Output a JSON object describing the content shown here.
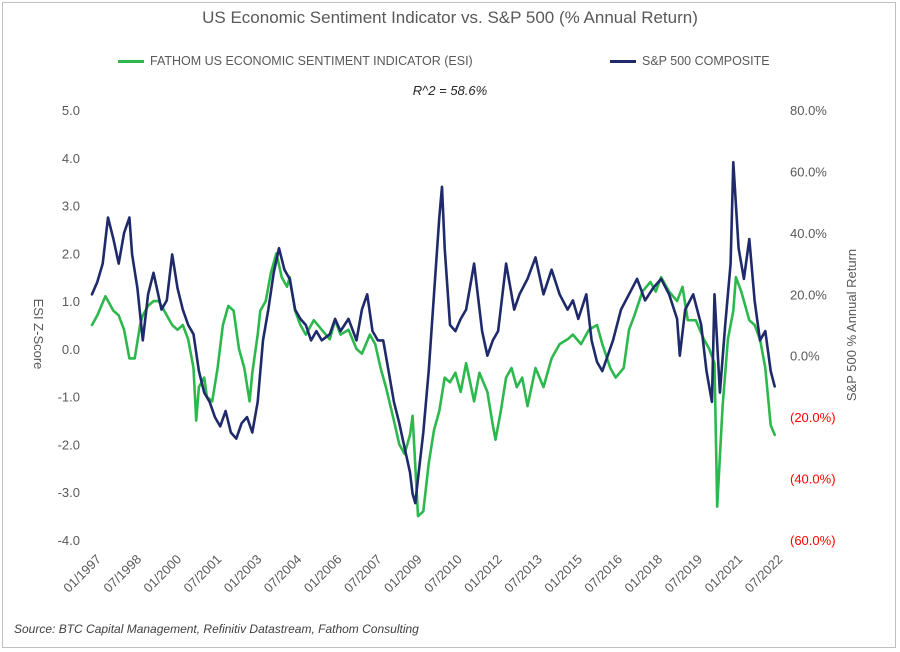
{
  "chart_data": {
    "type": "line",
    "title": "US Economic Sentiment Indicator  vs. S&P 500 (% Annual Return)",
    "annotation": "R^2 = 58.6%",
    "source": "Source: BTC Capital Management, Refinitiv Datastream, Fathom Consulting",
    "ylabel_left": "ESI Z-Score",
    "ylabel_right": "S&P 500 % Annual Return",
    "ylim_left": [
      -4.0,
      5.0
    ],
    "ylim_right": [
      -60,
      80
    ],
    "left_ticks": [
      "5.0",
      "4.0",
      "3.0",
      "2.0",
      "1.0",
      "0.0",
      "-1.0",
      "-2.0",
      "-3.0",
      "-4.0"
    ],
    "right_ticks": [
      "80.0%",
      "60.0%",
      "40.0%",
      "20.0%",
      "0.0%",
      "(20.0%)",
      "(40.0%)",
      "(60.0%)"
    ],
    "neg_color": "#ff0000",
    "x_range": [
      1997.0,
      2022.6
    ],
    "x_ticks": [
      {
        "label": "01/1997",
        "x": 1997.0
      },
      {
        "label": "07/1998",
        "x": 1998.5
      },
      {
        "label": "01/2000",
        "x": 2000.0
      },
      {
        "label": "07/2001",
        "x": 2001.5
      },
      {
        "label": "01/2003",
        "x": 2003.0
      },
      {
        "label": "07/2004",
        "x": 2004.5
      },
      {
        "label": "01/2006",
        "x": 2006.0
      },
      {
        "label": "07/2007",
        "x": 2007.5
      },
      {
        "label": "01/2009",
        "x": 2009.0
      },
      {
        "label": "07/2010",
        "x": 2010.5
      },
      {
        "label": "01/2012",
        "x": 2012.0
      },
      {
        "label": "07/2013",
        "x": 2013.5
      },
      {
        "label": "01/2015",
        "x": 2015.0
      },
      {
        "label": "07/2016",
        "x": 2016.5
      },
      {
        "label": "01/2018",
        "x": 2018.0
      },
      {
        "label": "07/2019",
        "x": 2019.5
      },
      {
        "label": "01/2021",
        "x": 2021.0
      },
      {
        "label": "07/2022",
        "x": 2022.5
      }
    ],
    "series": [
      {
        "name": "FATHOM US ECONOMIC SENTIMENT INDICATOR (ESI)",
        "axis": "left",
        "color": "#2db84d",
        "x": [
          1997.0,
          1997.2,
          1997.5,
          1997.8,
          1998.0,
          1998.2,
          1998.4,
          1998.6,
          1998.8,
          1998.9,
          1999.1,
          1999.3,
          1999.5,
          1999.8,
          2000.0,
          2000.2,
          2000.4,
          2000.6,
          2000.8,
          2000.9,
          2001.0,
          2001.2,
          2001.3,
          2001.5,
          2001.7,
          2001.9,
          2002.1,
          2002.3,
          2002.5,
          2002.7,
          2002.9,
          2003.0,
          2003.2,
          2003.3,
          2003.5,
          2003.7,
          2003.9,
          2004.1,
          2004.3,
          2004.4,
          2004.6,
          2004.8,
          2005.0,
          2005.3,
          2005.6,
          2005.9,
          2006.1,
          2006.3,
          2006.6,
          2006.9,
          2007.1,
          2007.4,
          2007.6,
          2007.8,
          2008.0,
          2008.3,
          2008.5,
          2008.7,
          2008.9,
          2009.0,
          2009.2,
          2009.4,
          2009.6,
          2009.8,
          2010.0,
          2010.2,
          2010.4,
          2010.6,
          2010.8,
          2011.0,
          2011.3,
          2011.5,
          2011.8,
          2012.0,
          2012.1,
          2012.3,
          2012.5,
          2012.7,
          2012.9,
          2013.1,
          2013.3,
          2013.6,
          2013.9,
          2014.2,
          2014.5,
          2014.8,
          2015.0,
          2015.3,
          2015.6,
          2015.9,
          2016.1,
          2016.4,
          2016.6,
          2016.9,
          2017.1,
          2017.3,
          2017.6,
          2017.9,
          2018.1,
          2018.3,
          2018.6,
          2018.9,
          2019.1,
          2019.3,
          2019.6,
          2019.9,
          2020.1,
          2020.3,
          2020.4,
          2020.6,
          2020.8,
          2021.0,
          2021.1,
          2021.3,
          2021.6,
          2021.8,
          2022.0,
          2022.2,
          2022.4,
          2022.55
        ],
        "values": [
          0.5,
          0.7,
          1.1,
          0.8,
          0.7,
          0.4,
          -0.2,
          -0.2,
          0.5,
          0.7,
          0.9,
          1.0,
          1.0,
          0.7,
          0.5,
          0.4,
          0.5,
          0.2,
          -0.4,
          -1.5,
          -0.8,
          -0.6,
          -1.0,
          -1.1,
          -0.4,
          0.5,
          0.9,
          0.8,
          0.0,
          -0.4,
          -1.1,
          -0.5,
          0.3,
          0.8,
          1.0,
          1.6,
          2.0,
          1.5,
          1.3,
          1.5,
          0.8,
          0.5,
          0.3,
          0.6,
          0.4,
          0.2,
          0.6,
          0.3,
          0.4,
          0.0,
          -0.1,
          0.3,
          0.1,
          -0.4,
          -0.8,
          -1.5,
          -2.0,
          -2.2,
          -1.8,
          -1.4,
          -3.5,
          -3.4,
          -2.4,
          -1.7,
          -1.3,
          -0.6,
          -0.7,
          -0.5,
          -0.9,
          -0.3,
          -1.1,
          -0.5,
          -0.9,
          -1.6,
          -1.9,
          -1.3,
          -0.6,
          -0.4,
          -0.8,
          -0.6,
          -1.2,
          -0.4,
          -0.8,
          -0.2,
          0.1,
          0.2,
          0.3,
          0.1,
          0.4,
          0.5,
          0.1,
          -0.4,
          -0.6,
          -0.4,
          0.4,
          0.7,
          1.2,
          1.4,
          1.2,
          1.5,
          1.2,
          1.0,
          1.3,
          0.6,
          0.6,
          0.2,
          0.0,
          -0.3,
          -3.3,
          -1.2,
          0.2,
          0.8,
          1.5,
          1.2,
          0.6,
          0.5,
          0.2,
          -0.4,
          -1.6,
          -1.8
        ]
      },
      {
        "name": "S&P 500 COMPOSITE",
        "axis": "right",
        "color": "#1f2a6b",
        "x": [
          1997.0,
          1997.2,
          1997.4,
          1997.6,
          1997.8,
          1998.0,
          1998.2,
          1998.4,
          1998.5,
          1998.7,
          1998.9,
          1999.1,
          1999.3,
          1999.6,
          1999.8,
          2000.0,
          2000.2,
          2000.4,
          2000.6,
          2000.8,
          2001.0,
          2001.2,
          2001.4,
          2001.6,
          2001.8,
          2002.0,
          2002.2,
          2002.4,
          2002.6,
          2002.8,
          2003.0,
          2003.2,
          2003.4,
          2003.6,
          2003.8,
          2004.0,
          2004.2,
          2004.4,
          2004.6,
          2004.8,
          2005.0,
          2005.2,
          2005.4,
          2005.6,
          2005.9,
          2006.1,
          2006.3,
          2006.6,
          2006.9,
          2007.1,
          2007.3,
          2007.5,
          2007.7,
          2007.9,
          2008.1,
          2008.3,
          2008.5,
          2008.7,
          2008.9,
          2009.0,
          2009.1,
          2009.2,
          2009.4,
          2009.6,
          2009.8,
          2010.0,
          2010.1,
          2010.2,
          2010.4,
          2010.6,
          2010.8,
          2011.0,
          2011.3,
          2011.6,
          2011.8,
          2012.0,
          2012.2,
          2012.5,
          2012.8,
          2013.0,
          2013.3,
          2013.6,
          2013.9,
          2014.2,
          2014.5,
          2014.8,
          2015.0,
          2015.2,
          2015.5,
          2015.7,
          2015.9,
          2016.1,
          2016.3,
          2016.5,
          2016.8,
          2017.1,
          2017.4,
          2017.7,
          2018.0,
          2018.3,
          2018.6,
          2018.9,
          2019.0,
          2019.2,
          2019.5,
          2019.8,
          2020.0,
          2020.2,
          2020.3,
          2020.5,
          2020.7,
          2020.9,
          2021.0,
          2021.2,
          2021.4,
          2021.6,
          2021.8,
          2022.0,
          2022.2,
          2022.4,
          2022.55
        ],
        "values": [
          20,
          24,
          30,
          45,
          38,
          30,
          40,
          45,
          33,
          22,
          5,
          20,
          27,
          15,
          18,
          33,
          22,
          15,
          10,
          7,
          -5,
          -12,
          -15,
          -20,
          -23,
          -18,
          -25,
          -27,
          -22,
          -20,
          -25,
          -15,
          5,
          15,
          27,
          35,
          28,
          25,
          15,
          12,
          10,
          5,
          8,
          5,
          7,
          12,
          8,
          12,
          5,
          15,
          20,
          8,
          5,
          5,
          -5,
          -15,
          -22,
          -30,
          -38,
          -45,
          -48,
          -40,
          -25,
          -5,
          20,
          45,
          55,
          35,
          10,
          8,
          12,
          15,
          30,
          8,
          0,
          5,
          8,
          30,
          15,
          20,
          25,
          32,
          20,
          28,
          20,
          15,
          18,
          12,
          20,
          5,
          -2,
          -5,
          0,
          5,
          15,
          20,
          25,
          18,
          22,
          25,
          20,
          12,
          0,
          15,
          20,
          10,
          -5,
          -15,
          20,
          -12,
          10,
          30,
          63,
          35,
          25,
          38,
          18,
          5,
          8,
          -5,
          -10
        ]
      }
    ]
  }
}
